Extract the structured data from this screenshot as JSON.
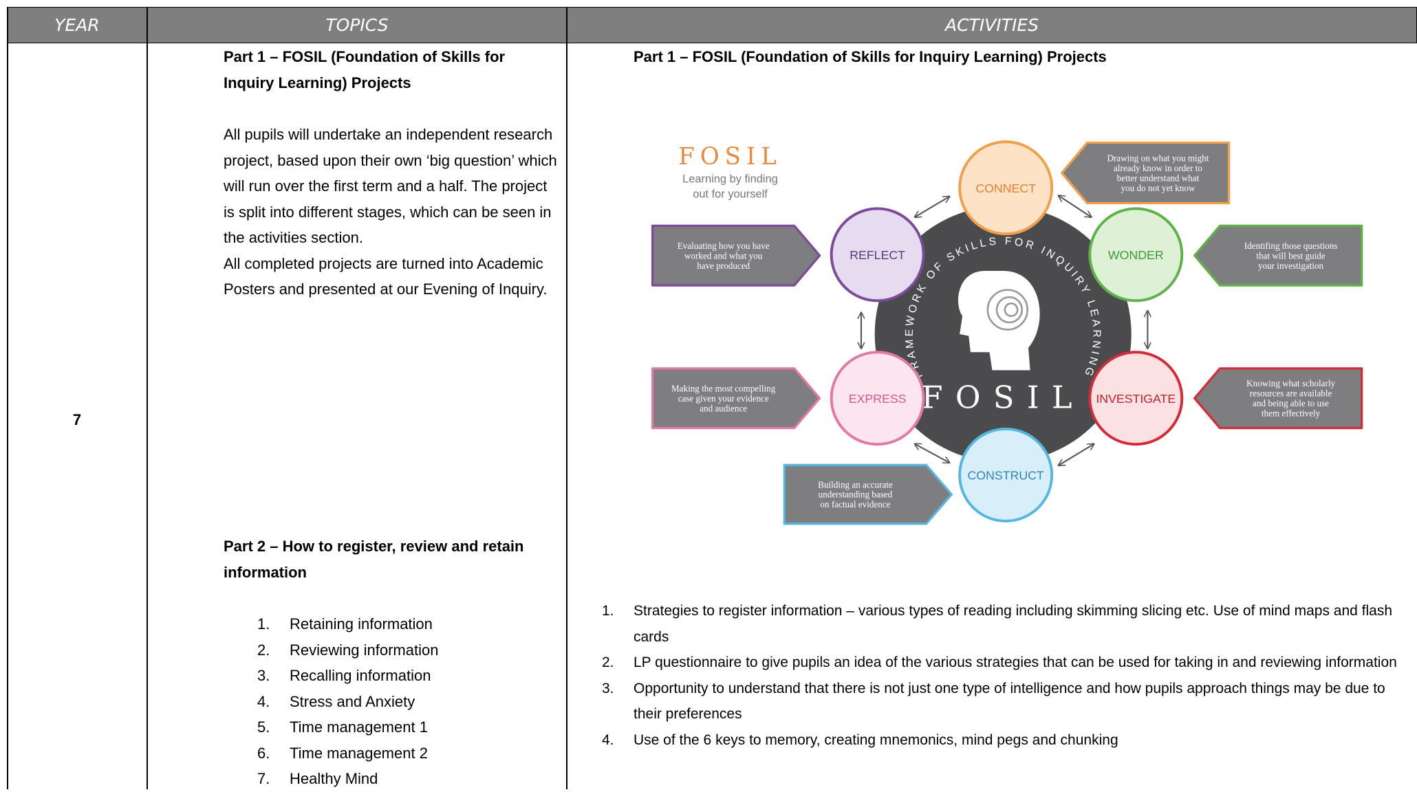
{
  "header": {
    "year": "YEAR",
    "topics": "TOPICS",
    "activities": "ACTIVITIES"
  },
  "row": {
    "year": "7",
    "topics": {
      "part1_title": "Part 1 – FOSIL (Foundation of Skills for Inquiry Learning) Projects",
      "part1_paragraphs": [
        "All pupils will undertake an independent research project, based upon their own ‘big question’ which will run over the first term and a half. The project is split into different stages, which can be seen in the activities section.",
        "All completed projects are turned into Academic Posters and presented at our Evening of Inquiry."
      ],
      "part2_title": "Part 2 – How to register, review and retain information",
      "part2_items": [
        {
          "num": "1.",
          "text": "Retaining information"
        },
        {
          "num": "2.",
          "text": "Reviewing information"
        },
        {
          "num": "3.",
          "text": "Recalling information"
        },
        {
          "num": "4.",
          "text": "Stress and Anxiety"
        },
        {
          "num": "5.",
          "text": "Time management 1"
        },
        {
          "num": "6.",
          "text": "Time management 2"
        },
        {
          "num": "7.",
          "text": "Healthy Mind"
        }
      ]
    },
    "activities": {
      "part1_title": "Part 1 – FOSIL (Foundation of Skills for Inquiry Learning) Projects",
      "diagram": {
        "logo": "FOSIL",
        "tagline": [
          "Learning by finding",
          "out for yourself"
        ],
        "ring_text": "FRAMEWORK OF SKILLS FOR INQUIRY LEARNING",
        "center": "FOSIL",
        "nodes": [
          {
            "label": "CONNECT",
            "description": [
              "Drawing on what you might",
              "already know in order to",
              "better understand what",
              "you do not yet know"
            ]
          },
          {
            "label": "WONDER",
            "description": [
              "Identifing those questions",
              "that will best guide",
              "your investigation"
            ]
          },
          {
            "label": "INVESTIGATE",
            "description": [
              "Knowing what scholarly",
              "resources are available",
              "and being able to use",
              "them effectively"
            ]
          },
          {
            "label": "CONSTRUCT",
            "description": [
              "Building an accurate",
              "understanding based",
              "on factual evidence"
            ]
          },
          {
            "label": "EXPRESS",
            "description": [
              "Making the most compelling",
              "case given your evidence",
              "and audience"
            ]
          },
          {
            "label": "REFLECT",
            "description": [
              "Evaluating how you have",
              "worked and what you",
              "have produced"
            ]
          }
        ]
      },
      "items": [
        {
          "num": "1.",
          "text": "Strategies to register information – various types of reading including skimming slicing etc. Use of mind maps and flash cards"
        },
        {
          "num": "2.",
          "text": "LP questionnaire to give pupils an idea of the various strategies that can be used for taking in and reviewing information"
        },
        {
          "num": "3.",
          "text": "Opportunity to understand that there is not just one type of intelligence and how pupils approach things may be due to their preferences"
        },
        {
          "num": "4.",
          "text": "Use of the 6 keys to memory, creating mnemonics, mind pegs and chunking"
        }
      ]
    }
  }
}
